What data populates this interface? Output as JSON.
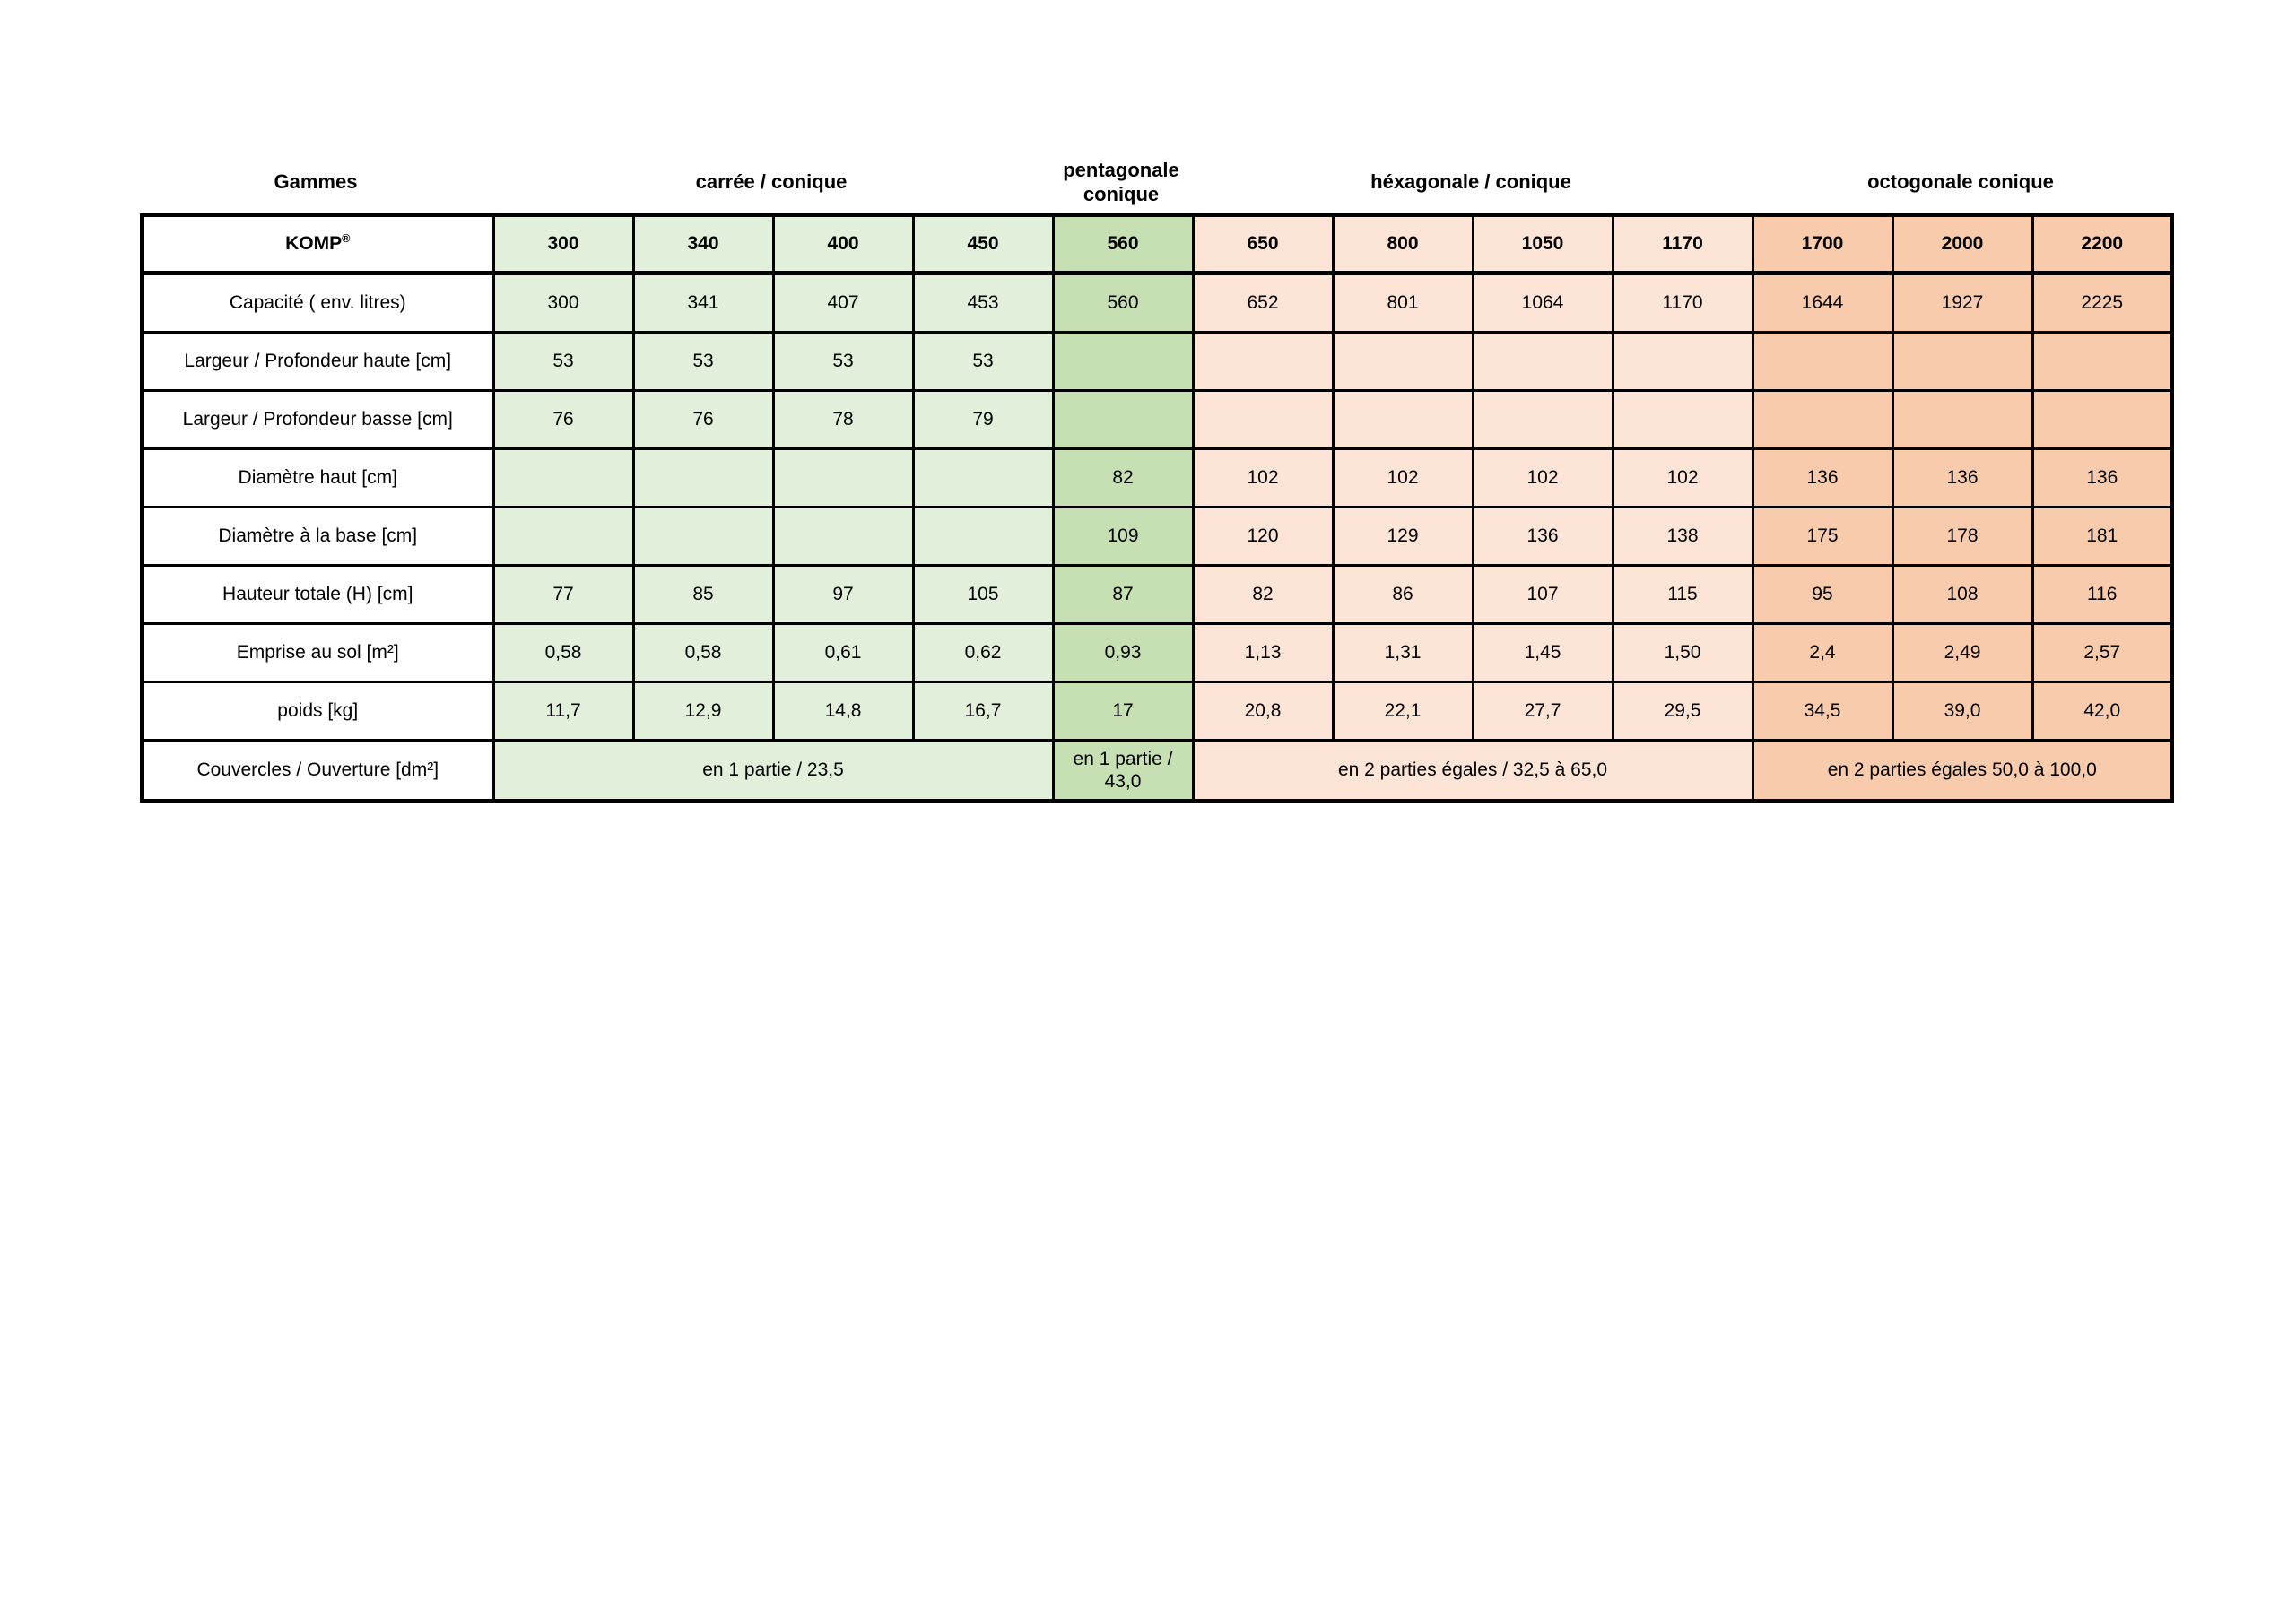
{
  "table": {
    "gammes_label": "Gammes",
    "corner": {
      "brand": "KOMP",
      "mark": "®"
    },
    "groups": [
      {
        "label": "carrée / conique",
        "color": "#E2EFDA",
        "columns": [
          "300",
          "340",
          "400",
          "450"
        ]
      },
      {
        "label": "pentagonale conique",
        "color": "#C6E0B4",
        "columns": [
          "560"
        ]
      },
      {
        "label": "héxagonale / conique",
        "color": "#FCE4D6",
        "columns": [
          "650",
          "800",
          "1050",
          "1170"
        ]
      },
      {
        "label": "octogonale conique",
        "color": "#F8CBAD",
        "columns": [
          "1700",
          "2000",
          "2200"
        ]
      }
    ],
    "rows": [
      {
        "label": "Capacité ( env. litres)",
        "values": [
          "300",
          "341",
          "407",
          "453",
          "560",
          "652",
          "801",
          "1064",
          "1170",
          "1644",
          "1927",
          "2225"
        ]
      },
      {
        "label": "Largeur / Profondeur haute  [cm]",
        "values": [
          "53",
          "53",
          "53",
          "53",
          "",
          "",
          "",
          "",
          "",
          "",
          "",
          ""
        ]
      },
      {
        "label": "Largeur / Profondeur basse  [cm]",
        "values": [
          "76",
          "76",
          "78",
          "79",
          "",
          "",
          "",
          "",
          "",
          "",
          "",
          ""
        ]
      },
      {
        "label": "Diamètre haut [cm]",
        "values": [
          "",
          "",
          "",
          "",
          "82",
          "102",
          "102",
          "102",
          "102",
          "136",
          "136",
          "136"
        ]
      },
      {
        "label": "Diamètre à la base [cm]",
        "values": [
          "",
          "",
          "",
          "",
          "109",
          "120",
          "129",
          "136",
          "138",
          "175",
          "178",
          "181"
        ]
      },
      {
        "label": "Hauteur totale (H)   [cm]",
        "values": [
          "77",
          "85",
          "97",
          "105",
          "87",
          "82",
          "86",
          "107",
          "115",
          "95",
          "108",
          "116"
        ]
      },
      {
        "label": "Emprise au sol   [m²]",
        "values": [
          "0,58",
          "0,58",
          "0,61",
          "0,62",
          "0,93",
          "1,13",
          "1,31",
          "1,45",
          "1,50",
          "2,4",
          "2,49",
          "2,57"
        ]
      },
      {
        "label": "poids   [kg]",
        "values": [
          "11,7",
          "12,9",
          "14,8",
          "16,7",
          "17",
          "20,8",
          "22,1",
          "27,7",
          "29,5",
          "34,5",
          "39,0",
          "42,0"
        ]
      }
    ],
    "lids_row": {
      "label": "Couvercles / Ouverture  [dm²]",
      "cells": [
        {
          "text": "en 1 partie / 23,5",
          "span": 4,
          "group": 0
        },
        {
          "text": "en 1 partie / 43,0",
          "span": 1,
          "group": 1
        },
        {
          "text": "en 2 parties égales / 32,5 à 65,0",
          "span": 4,
          "group": 2
        },
        {
          "text": "en 2 parties égales 50,0 à 100,0",
          "span": 3,
          "group": 3
        }
      ]
    }
  }
}
